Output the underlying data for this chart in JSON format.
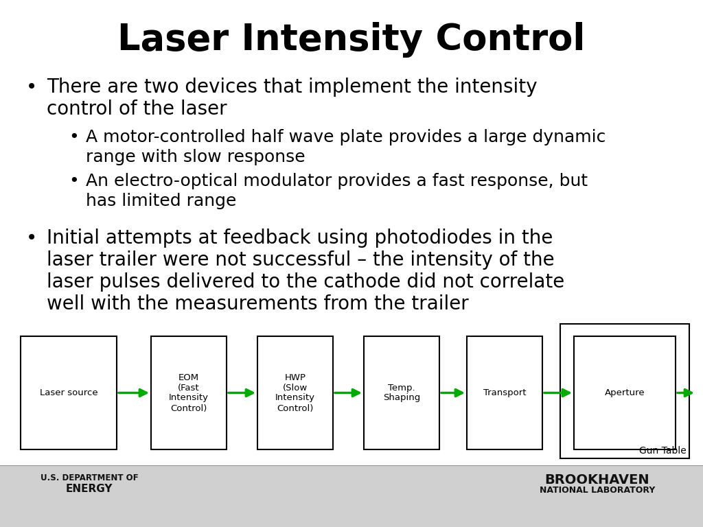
{
  "title": "Laser Intensity Control",
  "title_fontsize": 38,
  "title_fontweight": "bold",
  "background_color": "#ffffff",
  "text_color": "#000000",
  "bullet1_line1": "There are two devices that implement the intensity",
  "bullet1_line2": "control of the laser",
  "sub1_line1": "A motor-controlled half wave plate provides a large dynamic",
  "sub1_line2": "range with slow response",
  "sub2_line1": "An electro-optical modulator provides a fast response, but",
  "sub2_line2": "has limited range",
  "bullet2_line1": "Initial attempts at feedback using photodiodes in the",
  "bullet2_line2": "laser trailer were not successful – the intensity of the",
  "bullet2_line3": "laser pulses delivered to the cathode did not correlate",
  "bullet2_line4": "well with the measurements from the trailer",
  "boxes": [
    "Laser source",
    "EOM\n(Fast\nIntensity\nControl)",
    "HWP\n(Slow\nIntensity\nControl)",
    "Temp.\nShaping",
    "Transport",
    "Aperture"
  ],
  "arrow_color": "#00aa00",
  "box_border_color": "#000000",
  "gun_table_label": "Gun Table",
  "footer_bg": "#d0d0d0",
  "footer_left_line1": "U.S. DEPARTMENT OF",
  "footer_left_line2": "ENERGY",
  "footer_right_line1": "BROOKHAVEN",
  "footer_right_line2": "NATIONAL LABORATORY"
}
